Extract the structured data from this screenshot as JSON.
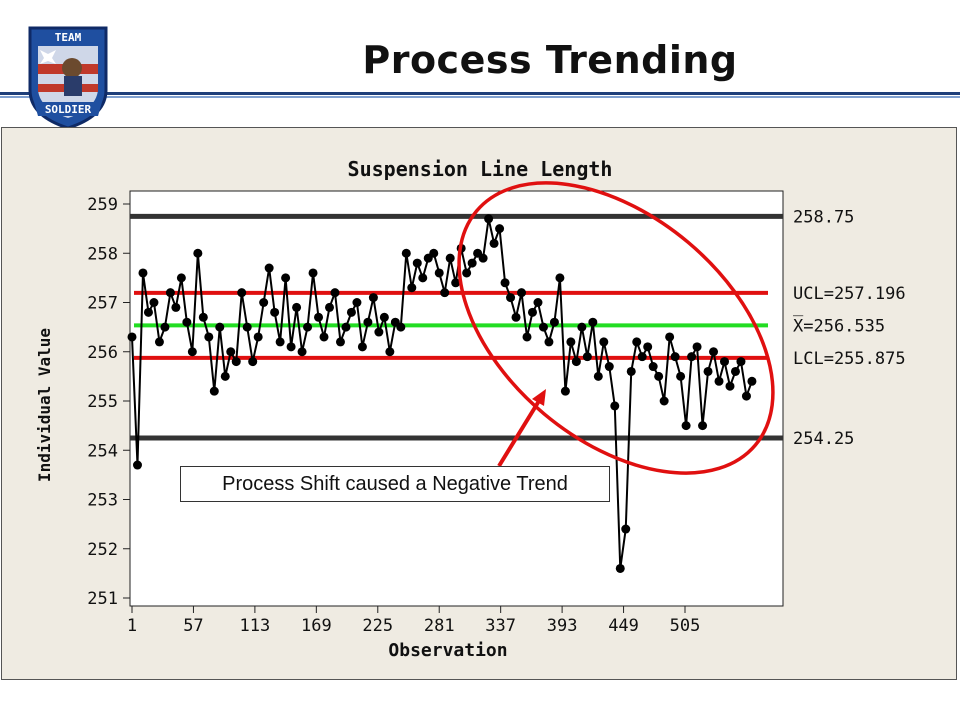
{
  "slide": {
    "title": "Process Trending",
    "logo": {
      "top": "TEAM",
      "bottom": "SOLDIER"
    },
    "callout": "Process Shift caused a Negative Trend"
  },
  "chart_data": {
    "type": "line",
    "title": "Suspension Line Length",
    "xlabel": "Observation",
    "ylabel": "Individual Value",
    "xlim": [
      1,
      577
    ],
    "ylim": [
      251,
      259
    ],
    "x_ticks": [
      1,
      57,
      113,
      169,
      225,
      281,
      337,
      393,
      449,
      505
    ],
    "y_ticks": [
      259,
      258,
      257,
      256,
      255,
      254,
      253,
      252,
      251
    ],
    "reference_lines": [
      {
        "label": "258.75",
        "value": 258.75,
        "color": "#333333"
      },
      {
        "label": "UCL=257.196",
        "value": 257.196,
        "color": "#e01010"
      },
      {
        "label": "X̅=256.535",
        "value": 256.535,
        "color": "#22dd22"
      },
      {
        "label": "LCL=255.875",
        "value": 255.875,
        "color": "#e01010"
      },
      {
        "label": "254.25",
        "value": 254.25,
        "color": "#333333"
      }
    ],
    "series": [
      {
        "x": [
          1,
          6,
          11,
          16,
          21,
          26,
          31,
          36,
          41,
          46,
          51,
          56,
          61,
          66,
          71,
          76,
          81,
          86,
          91,
          96,
          101,
          106,
          111,
          116,
          121,
          126,
          131,
          136,
          141,
          146,
          151,
          156,
          161,
          166,
          171,
          176,
          181,
          186,
          191,
          196,
          201,
          206,
          211,
          216,
          221,
          226,
          231,
          236,
          241,
          246,
          251,
          256,
          261,
          266,
          271,
          276,
          281,
          286,
          291,
          296,
          301,
          306,
          311,
          316,
          321,
          326,
          331,
          336,
          341,
          346,
          351,
          356,
          361,
          366,
          371,
          376,
          381,
          386,
          391,
          396,
          401,
          406,
          411,
          416,
          421,
          426,
          431,
          436,
          441,
          446,
          451,
          456,
          461,
          466,
          471,
          476,
          481,
          486,
          491,
          496,
          501,
          506,
          511,
          516,
          521,
          526,
          531,
          536,
          541,
          546,
          551,
          556,
          561,
          566
        ],
        "y": [
          256.3,
          253.7,
          257.6,
          256.8,
          257.0,
          256.2,
          256.5,
          257.2,
          256.9,
          257.5,
          256.6,
          256.0,
          258.0,
          256.7,
          256.3,
          255.2,
          256.5,
          255.5,
          256.0,
          255.8,
          257.2,
          256.5,
          255.8,
          256.3,
          257.0,
          257.7,
          256.8,
          256.2,
          257.5,
          256.1,
          256.9,
          256.0,
          256.5,
          257.6,
          256.7,
          256.3,
          256.9,
          257.2,
          256.2,
          256.5,
          256.8,
          257.0,
          256.1,
          256.6,
          257.1,
          256.4,
          256.7,
          256.0,
          256.6,
          256.5,
          258.0,
          257.3,
          257.8,
          257.5,
          257.9,
          258.0,
          257.6,
          257.2,
          257.9,
          257.4,
          258.1,
          257.6,
          257.8,
          258.0,
          257.9,
          258.7,
          258.2,
          258.5,
          257.4,
          257.1,
          256.7,
          257.2,
          256.3,
          256.8,
          257.0,
          256.5,
          256.2,
          256.6,
          257.5,
          255.2,
          256.2,
          255.8,
          256.5,
          255.9,
          256.6,
          255.5,
          256.2,
          255.7,
          254.9,
          251.6,
          252.4,
          255.6,
          256.2,
          255.9,
          256.1,
          255.7,
          255.5,
          255.0,
          256.3,
          255.9,
          255.5,
          254.5,
          255.9,
          256.1,
          254.5,
          255.6,
          256.0,
          255.4,
          255.8,
          255.3,
          255.6,
          255.8,
          255.1,
          255.4
        ]
      }
    ]
  }
}
